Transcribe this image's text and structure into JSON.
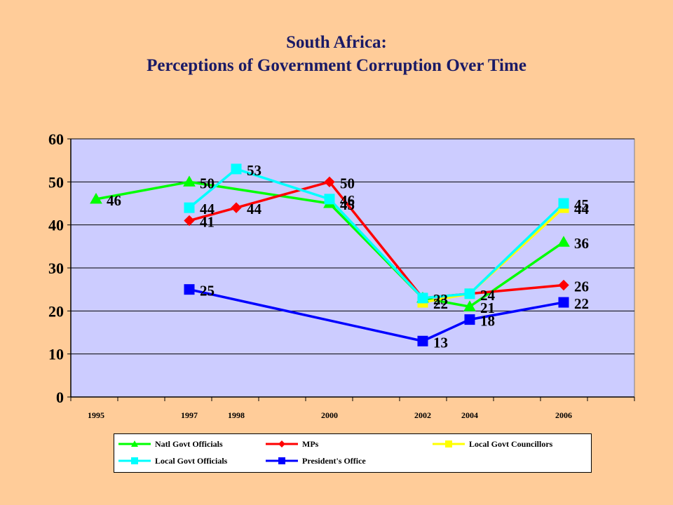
{
  "title_line1": "South Africa:",
  "title_line2": "Perceptions of Government Corruption Over Time",
  "chart_data": {
    "type": "line",
    "title": "South Africa: Perceptions of Government Corruption Over Time",
    "x_categories": [
      "1995",
      "1997",
      "1998",
      "2000",
      "2002",
      "2004",
      "2006"
    ],
    "ylim": [
      0,
      60
    ],
    "y_ticks": [
      0,
      10,
      20,
      30,
      40,
      50,
      60
    ],
    "grid": "horizontal",
    "legend_position": "bottom",
    "plot_background": "#CCCCFF",
    "series": [
      {
        "name": "Natl Govt Officials",
        "color": "#00FF00",
        "marker": "triangle",
        "x": [
          "1995",
          "1997",
          "2000",
          "2002",
          "2004",
          "2006"
        ],
        "values": [
          46,
          50,
          45,
          23,
          21,
          36
        ]
      },
      {
        "name": "MPs",
        "color": "#FF0000",
        "marker": "diamond",
        "x": [
          "1997",
          "1998",
          "2000",
          "2002",
          "2004",
          "2006"
        ],
        "values": [
          41,
          44,
          50,
          23,
          24,
          26
        ]
      },
      {
        "name": "Local Govt Councillors",
        "color": "#FFFF00",
        "marker": "square",
        "x": [
          "2002",
          "2004",
          "2006"
        ],
        "values": [
          22,
          24,
          44
        ]
      },
      {
        "name": "Local Govt Officials",
        "color": "#00FFFF",
        "marker": "square",
        "x": [
          "1997",
          "1998",
          "2000",
          "2002",
          "2004",
          "2006"
        ],
        "values": [
          44,
          53,
          46,
          23,
          24,
          45
        ]
      },
      {
        "name": "President's Office",
        "color": "#0000FF",
        "marker": "square",
        "x": [
          "1997",
          "2002",
          "2004",
          "2006"
        ],
        "values": [
          25,
          13,
          18,
          22
        ]
      }
    ],
    "data_labels": [
      {
        "text": "46",
        "x": "1995",
        "y": 46
      },
      {
        "text": "50",
        "x": "1997",
        "y": 50
      },
      {
        "text": "44",
        "x": "1997",
        "y": 44
      },
      {
        "text": "41",
        "x": "1997",
        "y": 41
      },
      {
        "text": "25",
        "x": "1997",
        "y": 25
      },
      {
        "text": "53",
        "x": "1998",
        "y": 53
      },
      {
        "text": "44",
        "x": "1998",
        "y": 44
      },
      {
        "text": "50",
        "x": "2000",
        "y": 50
      },
      {
        "text": "46",
        "x": "2000",
        "y": 46
      },
      {
        "text": "45",
        "x": "2000",
        "y": 45
      },
      {
        "text": "23",
        "x": "2002",
        "y": 23
      },
      {
        "text": "22",
        "x": "2002",
        "y": 22
      },
      {
        "text": "13",
        "x": "2002",
        "y": 13
      },
      {
        "text": "24",
        "x": "2004",
        "y": 24
      },
      {
        "text": "21",
        "x": "2004",
        "y": 21
      },
      {
        "text": "18",
        "x": "2004",
        "y": 18
      },
      {
        "text": "44",
        "x": "2006",
        "y": 44
      },
      {
        "text": "45",
        "x": "2006",
        "y": 45
      },
      {
        "text": "36",
        "x": "2006",
        "y": 36
      },
      {
        "text": "26",
        "x": "2006",
        "y": 26
      },
      {
        "text": "22",
        "x": "2006",
        "y": 22
      }
    ]
  }
}
